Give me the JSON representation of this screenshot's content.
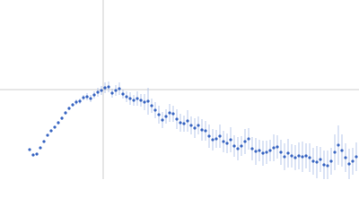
{
  "chart_data": {
    "type": "scatter",
    "x": [
      33,
      37,
      41,
      45,
      49,
      53,
      57,
      61,
      65,
      69,
      73,
      77,
      81,
      85,
      89,
      93,
      97,
      101,
      105,
      109,
      113,
      117,
      121,
      125,
      129,
      133,
      137,
      141,
      145,
      149,
      153,
      157,
      161,
      165,
      169,
      173,
      177,
      181,
      185,
      189,
      193,
      197,
      201,
      205,
      209,
      213,
      217,
      221,
      225,
      229,
      233,
      237,
      241,
      245,
      249,
      253,
      257,
      261,
      265,
      269,
      273,
      277,
      281,
      285,
      289,
      293,
      297,
      301,
      305,
      309,
      313,
      317,
      321,
      325,
      329,
      333,
      337,
      341,
      345,
      349,
      353,
      357,
      361,
      365,
      369,
      373,
      377,
      381,
      385,
      389,
      393,
      397
    ],
    "values": [
      33,
      27,
      28,
      35,
      42,
      49,
      54,
      58,
      63,
      68,
      74,
      79,
      83,
      86,
      87,
      91,
      92,
      90,
      94,
      97,
      99,
      102,
      103,
      96,
      99,
      101,
      95,
      92,
      90,
      88,
      90,
      88,
      86,
      87,
      82,
      77,
      72,
      66,
      70,
      74,
      73,
      67,
      63,
      62,
      65,
      60,
      57,
      60,
      55,
      54,
      48,
      44,
      45,
      48,
      42,
      40,
      44,
      37,
      34,
      37,
      42,
      45,
      34,
      31,
      32,
      29,
      30,
      32,
      35,
      36,
      30,
      25,
      29,
      26,
      24,
      26,
      25,
      26,
      24,
      20,
      19,
      22,
      16,
      15,
      20,
      30,
      38,
      32,
      24,
      17,
      20,
      25
    ],
    "errors": [
      1,
      1,
      1,
      1,
      1,
      1,
      1,
      1,
      2,
      2,
      2,
      2,
      2,
      3,
      3,
      3,
      4,
      4,
      4,
      5,
      5,
      6,
      6,
      5,
      6,
      7,
      5,
      6,
      7,
      6,
      8,
      7,
      9,
      15,
      8,
      9,
      10,
      9,
      8,
      10,
      9,
      11,
      10,
      9,
      12,
      10,
      11,
      10,
      12,
      11,
      13,
      12,
      10,
      13,
      12,
      11,
      14,
      12,
      13,
      11,
      14,
      12,
      13,
      15,
      12,
      14,
      13,
      12,
      15,
      13,
      14,
      15,
      16,
      13,
      14,
      15,
      17,
      14,
      16,
      15,
      18,
      14,
      16,
      17,
      15,
      20,
      22,
      18,
      16,
      17,
      15,
      16
    ],
    "color": "#3a66c2",
    "error_color": "#a8bde6",
    "xlim": [
      0,
      400
    ],
    "ylim": [
      0,
      200
    ],
    "vline": 115,
    "hline": 100
  }
}
